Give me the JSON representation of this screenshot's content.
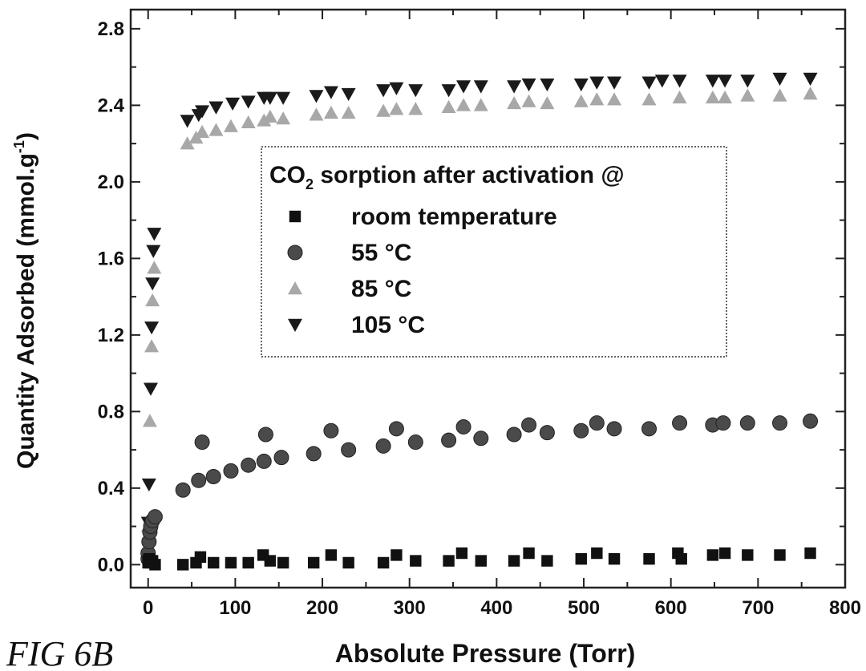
{
  "figure_label": "FIG 6B",
  "chart_data": {
    "type": "scatter",
    "xlabel": "Absolute Pressure (Torr)",
    "ylabel": "Quantity Adsorbed (mmol.g",
    "ylabel_superscript": "-1",
    "ylabel_close": ")",
    "xlim": [
      -20,
      800
    ],
    "ylim": [
      -0.12,
      2.9
    ],
    "x_ticks": [
      0,
      100,
      200,
      300,
      400,
      500,
      600,
      700,
      800
    ],
    "x_tick_labels": [
      "0",
      "100",
      "200",
      "300",
      "400",
      "500",
      "600",
      "700",
      "800"
    ],
    "y_ticks": [
      0.0,
      0.4,
      0.8,
      1.2,
      1.6,
      2.0,
      2.4,
      2.8
    ],
    "y_tick_labels": [
      "0.0",
      "0.4",
      "0.8",
      "1.2",
      "1.6",
      "2.0",
      "2.4",
      "2.8"
    ],
    "grid": false,
    "legend": {
      "position": "center-right",
      "title_prefix": "CO",
      "title_subscript": "2",
      "title_suffix": " sorption after activation @"
    },
    "series": [
      {
        "name": "room temperature",
        "marker": "square",
        "color": "#111111",
        "points": [
          [
            0,
            0.02
          ],
          [
            0,
            0.01
          ],
          [
            1,
            0.03
          ],
          [
            2,
            0.02
          ],
          [
            3,
            0.01
          ],
          [
            5,
            0.02
          ],
          [
            8,
            0.0
          ],
          [
            40,
            0.0
          ],
          [
            55,
            0.01
          ],
          [
            60,
            0.04
          ],
          [
            75,
            0.01
          ],
          [
            95,
            0.01
          ],
          [
            115,
            0.01
          ],
          [
            132,
            0.05
          ],
          [
            140,
            0.02
          ],
          [
            155,
            0.01
          ],
          [
            190,
            0.01
          ],
          [
            210,
            0.05
          ],
          [
            230,
            0.01
          ],
          [
            270,
            0.01
          ],
          [
            285,
            0.05
          ],
          [
            307,
            0.02
          ],
          [
            345,
            0.02
          ],
          [
            360,
            0.06
          ],
          [
            382,
            0.02
          ],
          [
            420,
            0.02
          ],
          [
            437,
            0.06
          ],
          [
            458,
            0.02
          ],
          [
            497,
            0.03
          ],
          [
            515,
            0.06
          ],
          [
            535,
            0.03
          ],
          [
            575,
            0.03
          ],
          [
            608,
            0.06
          ],
          [
            612,
            0.03
          ],
          [
            648,
            0.05
          ],
          [
            662,
            0.06
          ],
          [
            688,
            0.05
          ],
          [
            725,
            0.05
          ],
          [
            760,
            0.06
          ]
        ]
      },
      {
        "name": "55 °C",
        "marker": "circle",
        "color": "#4a4a4a",
        "points": [
          [
            0,
            0.03
          ],
          [
            0,
            0.06
          ],
          [
            1,
            0.12
          ],
          [
            2,
            0.17
          ],
          [
            3,
            0.2
          ],
          [
            5,
            0.23
          ],
          [
            8,
            0.25
          ],
          [
            40,
            0.39
          ],
          [
            58,
            0.44
          ],
          [
            62,
            0.64
          ],
          [
            75,
            0.46
          ],
          [
            95,
            0.49
          ],
          [
            115,
            0.52
          ],
          [
            133,
            0.54
          ],
          [
            135,
            0.68
          ],
          [
            153,
            0.56
          ],
          [
            190,
            0.58
          ],
          [
            210,
            0.7
          ],
          [
            230,
            0.6
          ],
          [
            270,
            0.62
          ],
          [
            285,
            0.71
          ],
          [
            307,
            0.64
          ],
          [
            345,
            0.65
          ],
          [
            362,
            0.72
          ],
          [
            382,
            0.66
          ],
          [
            420,
            0.68
          ],
          [
            437,
            0.73
          ],
          [
            458,
            0.69
          ],
          [
            497,
            0.7
          ],
          [
            515,
            0.74
          ],
          [
            535,
            0.71
          ],
          [
            575,
            0.71
          ],
          [
            610,
            0.74
          ],
          [
            648,
            0.73
          ],
          [
            660,
            0.74
          ],
          [
            688,
            0.74
          ],
          [
            725,
            0.74
          ],
          [
            760,
            0.75
          ]
        ]
      },
      {
        "name": "85 °C",
        "marker": "triangle-up",
        "color": "#a8a8a8",
        "points": [
          [
            0,
            0.2
          ],
          [
            2,
            0.75
          ],
          [
            4,
            1.14
          ],
          [
            5,
            1.38
          ],
          [
            7,
            1.55
          ],
          [
            45,
            2.2
          ],
          [
            55,
            2.23
          ],
          [
            62,
            2.26
          ],
          [
            78,
            2.27
          ],
          [
            95,
            2.29
          ],
          [
            115,
            2.31
          ],
          [
            133,
            2.32
          ],
          [
            140,
            2.34
          ],
          [
            155,
            2.33
          ],
          [
            193,
            2.35
          ],
          [
            210,
            2.36
          ],
          [
            230,
            2.36
          ],
          [
            270,
            2.37
          ],
          [
            285,
            2.38
          ],
          [
            307,
            2.38
          ],
          [
            345,
            2.39
          ],
          [
            362,
            2.4
          ],
          [
            382,
            2.4
          ],
          [
            420,
            2.41
          ],
          [
            437,
            2.42
          ],
          [
            458,
            2.41
          ],
          [
            497,
            2.42
          ],
          [
            515,
            2.43
          ],
          [
            535,
            2.43
          ],
          [
            575,
            2.43
          ],
          [
            610,
            2.44
          ],
          [
            648,
            2.44
          ],
          [
            662,
            2.44
          ],
          [
            688,
            2.45
          ],
          [
            725,
            2.45
          ],
          [
            760,
            2.46
          ]
        ]
      },
      {
        "name": "105 °C",
        "marker": "triangle-down",
        "color": "#1a1a1a",
        "points": [
          [
            0,
            0.22
          ],
          [
            1,
            0.42
          ],
          [
            3,
            0.92
          ],
          [
            4,
            1.24
          ],
          [
            5,
            1.47
          ],
          [
            6,
            1.64
          ],
          [
            7,
            1.73
          ],
          [
            45,
            2.32
          ],
          [
            58,
            2.35
          ],
          [
            62,
            2.37
          ],
          [
            78,
            2.39
          ],
          [
            97,
            2.41
          ],
          [
            115,
            2.42
          ],
          [
            133,
            2.44
          ],
          [
            140,
            2.44
          ],
          [
            155,
            2.44
          ],
          [
            193,
            2.45
          ],
          [
            210,
            2.47
          ],
          [
            230,
            2.46
          ],
          [
            270,
            2.48
          ],
          [
            285,
            2.49
          ],
          [
            307,
            2.48
          ],
          [
            345,
            2.48
          ],
          [
            362,
            2.5
          ],
          [
            382,
            2.5
          ],
          [
            420,
            2.5
          ],
          [
            437,
            2.51
          ],
          [
            458,
            2.51
          ],
          [
            497,
            2.51
          ],
          [
            515,
            2.52
          ],
          [
            535,
            2.52
          ],
          [
            575,
            2.52
          ],
          [
            590,
            2.53
          ],
          [
            610,
            2.53
          ],
          [
            648,
            2.53
          ],
          [
            662,
            2.53
          ],
          [
            688,
            2.53
          ],
          [
            725,
            2.54
          ],
          [
            760,
            2.54
          ]
        ]
      }
    ]
  }
}
